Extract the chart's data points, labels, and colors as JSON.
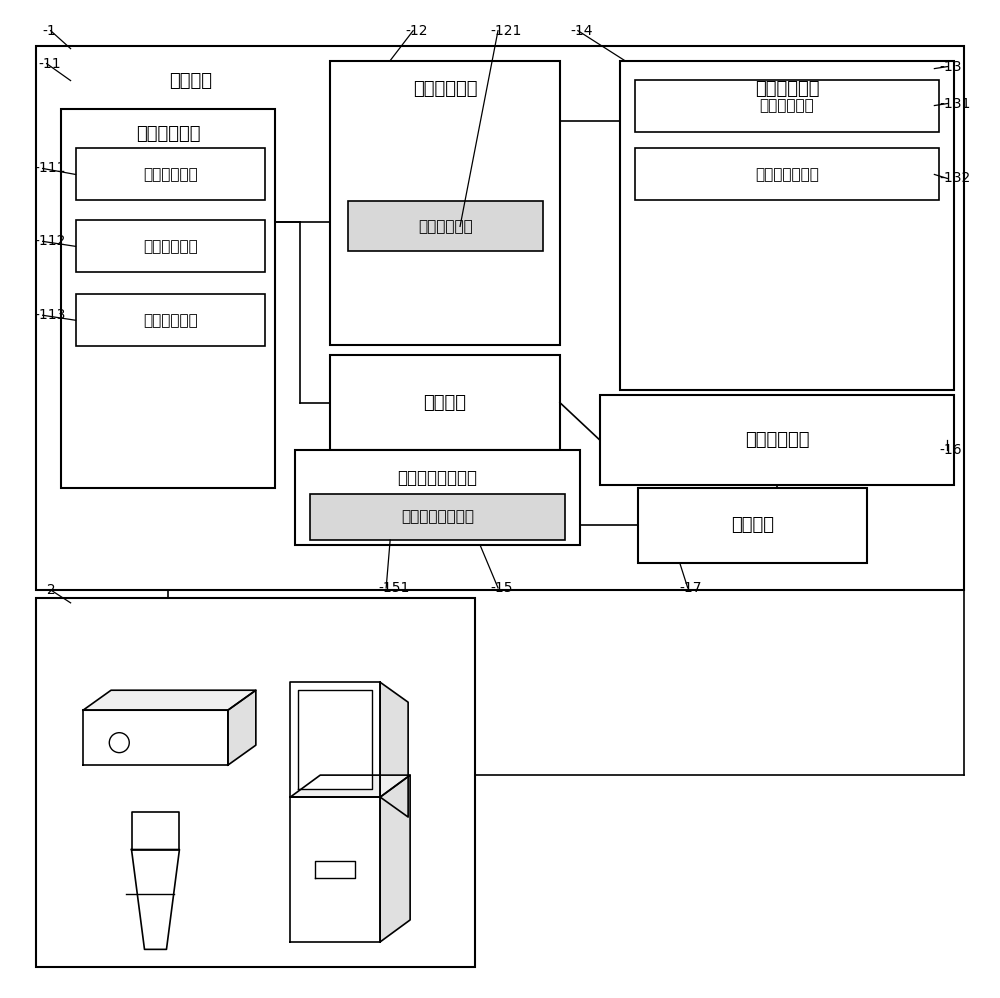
{
  "bg_color": "#ffffff",
  "ec": "#000000",
  "fc": "#ffffff",
  "gray_fc": "#d8d8d8",
  "texts": {
    "chuli": "处理系统",
    "shuju": "数据获取模块",
    "wenti_paicha": "问题排查模块",
    "shebei_caokong": "设备操控模块",
    "di1": "第一获取单元",
    "di2": "第二获取单元",
    "di3": "第三获取单元",
    "wenti_unit": "问题排查单元",
    "caokong_unit": "设备操控单元",
    "preset_unit": "设备预设定单元",
    "storage": "存储模块",
    "data_addr": "数据地址处理模块",
    "data_addr_verify": "数据地址验证单元",
    "classify": "分类匹配模块",
    "verify": "验证模块"
  },
  "labels": {
    "1": "1",
    "2": "2",
    "11": "11",
    "12": "12",
    "13": "13",
    "14": "14",
    "16": "16",
    "17": "17",
    "111": "111",
    "112": "112",
    "113": "113",
    "121": "121",
    "131": "131",
    "132": "132",
    "151": "151",
    "15": "15"
  }
}
